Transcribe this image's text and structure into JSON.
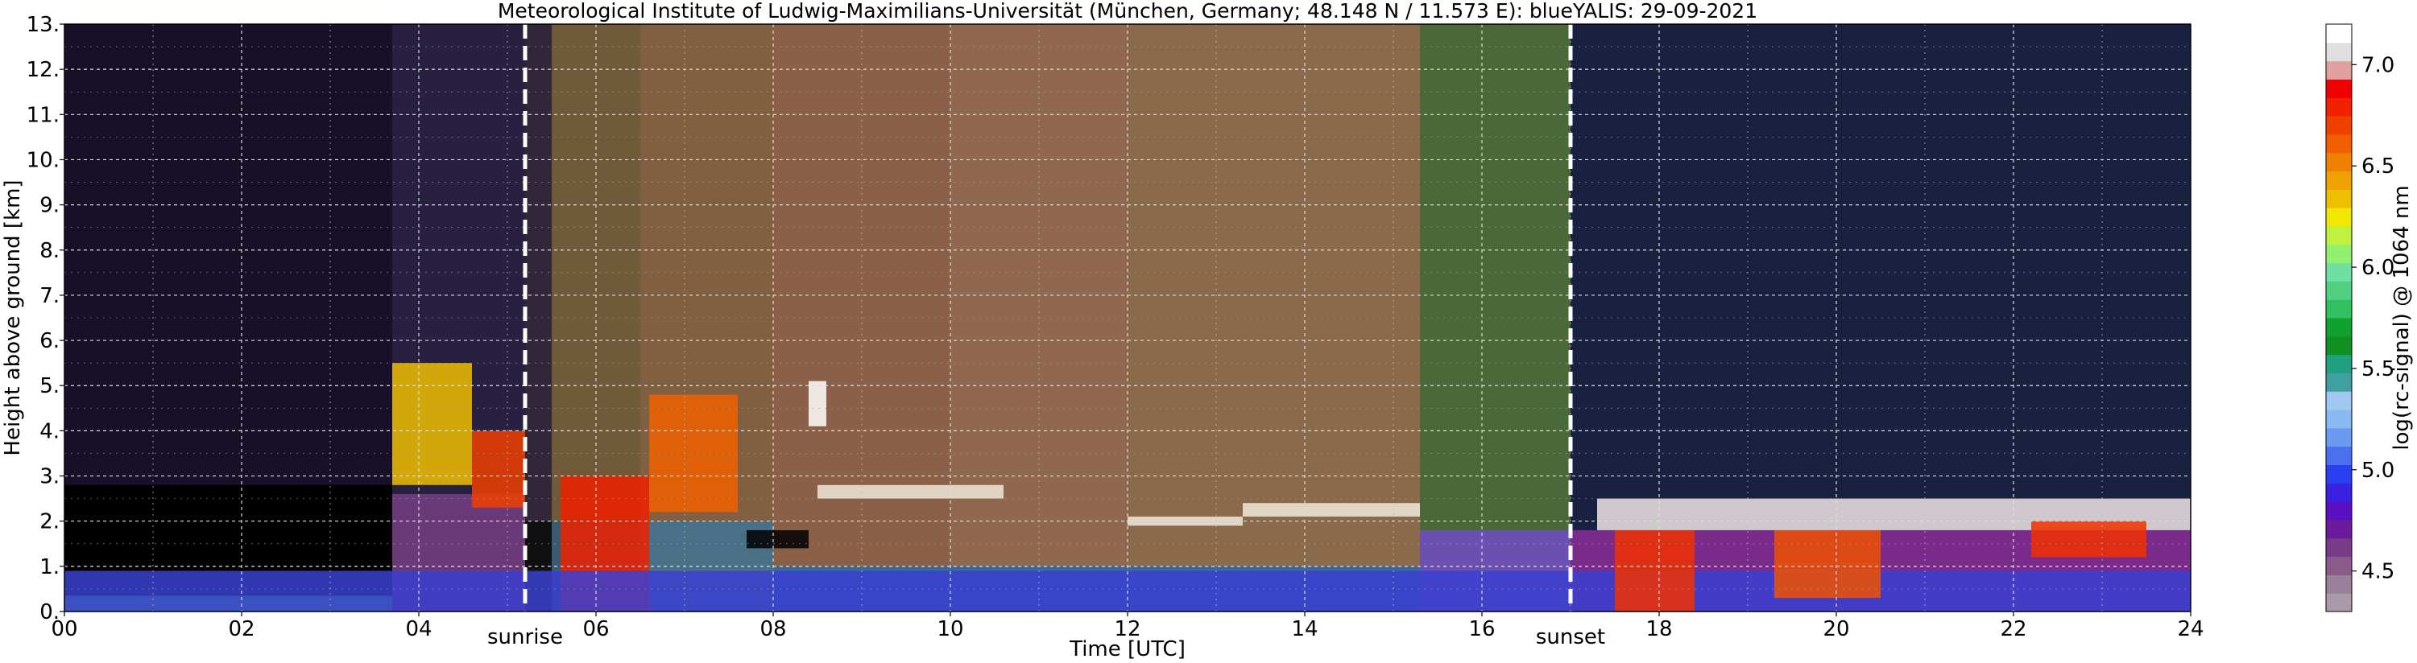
{
  "chart_data": {
    "type": "heatmap",
    "title": "Meteorological Institute of Ludwig-Maximilians-Universität (München, Germany; 48.148 N / 11.573 E):    blueYALIS: 29-09-2021",
    "xlabel": "Time [UTC]",
    "ylabel": "Height above ground [km]",
    "xlim": [
      0,
      24
    ],
    "ylim": [
      0,
      13
    ],
    "x_ticks": [
      "00",
      "02",
      "04",
      "06",
      "08",
      "10",
      "12",
      "14",
      "16",
      "18",
      "20",
      "22",
      "24"
    ],
    "y_ticks": [
      "0.",
      "1.",
      "2.",
      "3.",
      "4.",
      "5.",
      "6.",
      "7.",
      "8.",
      "9.",
      "10.",
      "11.",
      "12.",
      "13."
    ],
    "grid": true,
    "colorbar": {
      "label": "log(rc-signal) @ 1064 nm",
      "range": [
        4.3,
        7.2
      ],
      "tick_values": [
        4.5,
        5.0,
        5.5,
        6.0,
        6.5,
        7.0
      ],
      "tick_labels": [
        "4.5",
        "5.0",
        "5.5",
        "6.0",
        "6.5",
        "7.0"
      ],
      "colors": [
        "#a89aa8",
        "#9a7f9a",
        "#8a5a8a",
        "#7a3a8a",
        "#6a1a9a",
        "#5a10c0",
        "#3a20e0",
        "#2a40f0",
        "#4a70f0",
        "#6a9af0",
        "#8ab8f0",
        "#a0c8f0",
        "#40a0a0",
        "#20a080",
        "#109020",
        "#10a030",
        "#30c060",
        "#50d080",
        "#70e0a0",
        "#90f070",
        "#c0f040",
        "#f0e800",
        "#f0c000",
        "#f0a000",
        "#f08000",
        "#f06000",
        "#f04000",
        "#f02000",
        "#f00000",
        "#e0a0a0",
        "#e0e0e0",
        "#ffffff"
      ]
    },
    "annotations": [
      {
        "text": "sunrise",
        "x": 5.2
      },
      {
        "text": "sunset",
        "x": 17.0
      }
    ],
    "segments": [
      {
        "x": [
          0.0,
          3.7
        ],
        "bg": "#181028",
        "low_fill": "#000000",
        "low_top": 2.8
      },
      {
        "x": [
          3.7,
          5.2
        ],
        "bg": "#282040",
        "low_fill": "#6a3a78",
        "low_top": 2.6
      },
      {
        "x": [
          5.2,
          5.5
        ],
        "bg": "#302838",
        "low_fill": "#101010",
        "low_top": 2.0
      },
      {
        "x": [
          5.5,
          6.5
        ],
        "bg": "#705a3a",
        "low_fill": "#3a5a70",
        "low_top": 2.0
      },
      {
        "x": [
          6.5,
          8.0
        ],
        "bg": "#806040",
        "low_fill": "#4a7088",
        "low_top": 2.0
      },
      {
        "x": [
          8.0,
          10.0
        ],
        "bg": "#8a6048",
        "low_fill": "#3a6898",
        "low_top": 1.0
      },
      {
        "x": [
          10.0,
          12.0
        ],
        "bg": "#906850",
        "low_fill": "#3a68a0",
        "low_top": 1.0
      },
      {
        "x": [
          12.0,
          15.3
        ],
        "bg": "#8a6a4a",
        "low_fill": "#3a68a0",
        "low_top": 1.0
      },
      {
        "x": [
          15.3,
          17.0
        ],
        "bg": "#4a6838",
        "low_fill": "#6a50b0",
        "low_top": 1.8
      },
      {
        "x": [
          17.0,
          24.0
        ],
        "bg": "#1a2040",
        "low_fill": "#7a2a8a",
        "low_top": 1.8
      }
    ],
    "layers": [
      {
        "x": [
          0.0,
          3.7
        ],
        "y": [
          0.0,
          0.35
        ],
        "color": "#50d080"
      },
      {
        "x": [
          3.7,
          4.6
        ],
        "y": [
          2.8,
          5.5
        ],
        "color": "#f0c000"
      },
      {
        "x": [
          4.6,
          5.2
        ],
        "y": [
          2.3,
          4.0
        ],
        "color": "#f04000"
      },
      {
        "x": [
          5.6,
          6.6
        ],
        "y": [
          0.0,
          3.0
        ],
        "color": "#f02000"
      },
      {
        "x": [
          6.6,
          7.6
        ],
        "y": [
          2.2,
          4.8
        ],
        "color": "#f06000"
      },
      {
        "x": [
          8.4,
          8.6
        ],
        "y": [
          4.1,
          5.1
        ],
        "color": "#ffffff"
      },
      {
        "x": [
          8.5,
          10.6
        ],
        "y": [
          2.5,
          2.8
        ],
        "color": "#f0e8d8"
      },
      {
        "x": [
          7.7,
          8.4
        ],
        "y": [
          1.4,
          1.8
        ],
        "color": "#000000"
      },
      {
        "x": [
          12.0,
          13.3
        ],
        "y": [
          1.9,
          2.1
        ],
        "color": "#f0e8d8"
      },
      {
        "x": [
          13.3,
          15.3
        ],
        "y": [
          2.1,
          2.4
        ],
        "color": "#f0e8d8"
      },
      {
        "x": [
          0.0,
          24.0
        ],
        "y": [
          0.0,
          0.9
        ],
        "color": "#3a40d0"
      },
      {
        "x": [
          17.5,
          18.4
        ],
        "y": [
          0.0,
          1.8
        ],
        "color": "#f03000"
      },
      {
        "x": [
          19.3,
          20.5
        ],
        "y": [
          0.3,
          1.8
        ],
        "color": "#f05000"
      },
      {
        "x": [
          17.3,
          24.0
        ],
        "y": [
          1.8,
          2.5
        ],
        "color": "#f0e8e8"
      },
      {
        "x": [
          22.2,
          23.5
        ],
        "y": [
          1.2,
          2.0
        ],
        "color": "#f03000"
      }
    ]
  }
}
